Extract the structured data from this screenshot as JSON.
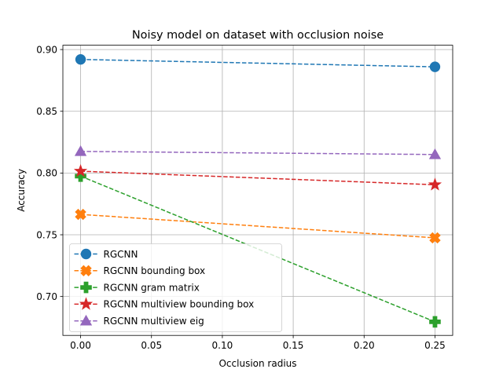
{
  "chart_data": {
    "type": "line",
    "title": "Noisy model on dataset with occlusion noise",
    "xlabel": "Occlusion radius",
    "ylabel": "Accuracy",
    "xlim": [
      -0.0125,
      0.2625
    ],
    "ylim": [
      0.6685,
      0.9035
    ],
    "x_ticks": [
      0.0,
      0.05,
      0.1,
      0.15,
      0.2,
      0.25
    ],
    "x_tick_labels": [
      "0.00",
      "0.05",
      "0.10",
      "0.15",
      "0.20",
      "0.25"
    ],
    "y_ticks": [
      0.7,
      0.75,
      0.8,
      0.85,
      0.9
    ],
    "y_tick_labels": [
      "0.70",
      "0.75",
      "0.80",
      "0.85",
      "0.90"
    ],
    "grid": true,
    "legend_position": "lower-left",
    "series": [
      {
        "name": "RGCNN",
        "color": "#1f77b4",
        "marker": "circle",
        "x": [
          0.0,
          0.25
        ],
        "y": [
          0.892,
          0.886
        ]
      },
      {
        "name": "RGCNN bounding box",
        "color": "#ff7f0e",
        "marker": "x-filled",
        "x": [
          0.0,
          0.25
        ],
        "y": [
          0.7665,
          0.7475
        ]
      },
      {
        "name": "RGCNN gram matrix",
        "color": "#2ca02c",
        "marker": "plus-filled",
        "x": [
          0.0,
          0.25
        ],
        "y": [
          0.7975,
          0.6795
        ]
      },
      {
        "name": "RGCNN multiview bounding box",
        "color": "#d62728",
        "marker": "star",
        "x": [
          0.0,
          0.25
        ],
        "y": [
          0.8015,
          0.7905
        ]
      },
      {
        "name": "RGCNN multiview eig",
        "color": "#9467bd",
        "marker": "triangle",
        "x": [
          0.0,
          0.25
        ],
        "y": [
          0.8175,
          0.815
        ]
      }
    ]
  }
}
